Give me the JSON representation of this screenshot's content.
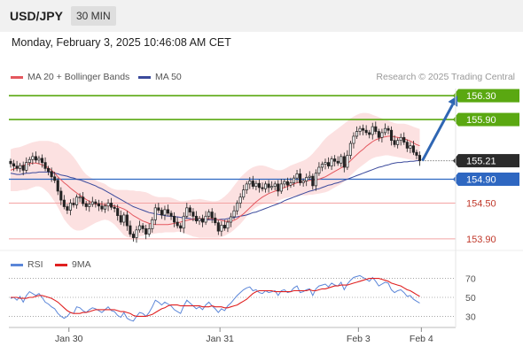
{
  "header": {
    "symbol": "USD/JPY",
    "timeframe": "30 MIN"
  },
  "datetime": "Monday, February 3, 2025 10:46:08 AM CET",
  "colors": {
    "green_level": "#5aa811",
    "blue_level": "#2e67c1",
    "red_level": "#f3a3a3",
    "price_tag": "#2b2b2b",
    "arrow": "#2f66b3",
    "ma20": "#e4575e",
    "ma50": "#3b4a9c",
    "bollinger_fill": "#fbdcdc",
    "rsi": "#5b86d8",
    "rsi_ma": "#e02020"
  },
  "chart_data": [
    {
      "type": "candlestick",
      "legend": {
        "ma20": "MA 20 + Bollinger Bands",
        "ma50": "MA 50",
        "credit": "Research © 2025 Trading Central"
      },
      "ylim": [
        153.78,
        156.42
      ],
      "x_ticks": [
        {
          "index": 5,
          "label": "Jan 30"
        },
        {
          "index": 53,
          "label": "Jan 31"
        },
        {
          "index": 97,
          "label": "Feb 3"
        },
        {
          "index": 117,
          "label": "Feb 4"
        }
      ],
      "levels": [
        {
          "value": 156.3,
          "label": "156.30",
          "kind": "resistance"
        },
        {
          "value": 155.9,
          "label": "155.90",
          "kind": "resistance"
        },
        {
          "value": 154.9,
          "label": "154.90",
          "kind": "pivot"
        },
        {
          "value": 154.5,
          "label": "154.50",
          "kind": "support"
        },
        {
          "value": 153.9,
          "label": "153.90",
          "kind": "support"
        }
      ],
      "last_price": {
        "value": 155.21,
        "label": "155.21"
      },
      "arrow": {
        "from_price": 155.21,
        "to_price": 156.3
      },
      "close": [
        155.16,
        155.12,
        155.08,
        155.13,
        155.05,
        155.18,
        155.23,
        155.28,
        155.22,
        155.25,
        155.18,
        155.08,
        155.03,
        154.94,
        154.88,
        154.7,
        154.55,
        154.44,
        154.38,
        154.5,
        154.47,
        154.6,
        154.6,
        154.49,
        154.44,
        154.48,
        154.52,
        154.49,
        154.45,
        154.4,
        154.45,
        154.5,
        154.43,
        154.41,
        154.29,
        154.18,
        154.3,
        154.12,
        153.98,
        153.92,
        154.05,
        154.12,
        154.07,
        153.98,
        154.07,
        154.22,
        154.42,
        154.38,
        154.3,
        154.39,
        154.33,
        154.28,
        154.18,
        154.12,
        154.08,
        154.28,
        154.42,
        154.35,
        154.28,
        154.2,
        154.24,
        154.18,
        154.28,
        154.35,
        154.25,
        154.17,
        154.03,
        154.13,
        154.08,
        154.18,
        154.27,
        154.37,
        154.5,
        154.6,
        154.72,
        154.82,
        154.87,
        154.78,
        154.83,
        154.76,
        154.74,
        154.82,
        154.76,
        154.78,
        154.82,
        154.7,
        154.82,
        154.86,
        154.8,
        154.84,
        154.92,
        154.99,
        154.84,
        154.87,
        154.93,
        154.95,
        154.79,
        155.0,
        155.1,
        155.15,
        155.18,
        155.12,
        155.24,
        155.2,
        155.17,
        155.28,
        155.1,
        155.3,
        155.5,
        155.62,
        155.7,
        155.75,
        155.72,
        155.68,
        155.65,
        155.78,
        155.7,
        155.6,
        155.68,
        155.75,
        155.72,
        155.55,
        155.48,
        155.55,
        155.6,
        155.52,
        155.42,
        155.46,
        155.35,
        155.3,
        155.21
      ],
      "ma20": [
        155.05,
        155.07,
        155.09,
        155.11,
        155.13,
        155.15,
        155.16,
        155.17,
        155.17,
        155.16,
        155.14,
        155.12,
        155.09,
        155.05,
        155.0,
        154.94,
        154.89,
        154.84,
        154.8,
        154.75,
        154.71,
        154.67,
        154.63,
        154.6,
        154.56,
        154.53,
        154.5,
        154.48,
        154.48,
        154.48,
        154.47,
        154.46,
        154.46,
        154.45,
        154.44,
        154.42,
        154.4,
        154.37,
        154.33,
        154.29,
        154.26,
        154.23,
        154.2,
        154.18,
        154.16,
        154.15,
        154.14,
        154.14,
        154.14,
        154.14,
        154.14,
        154.15,
        154.16,
        154.17,
        154.18,
        154.2,
        154.21,
        154.22,
        154.23,
        154.24,
        154.24,
        154.24,
        154.24,
        154.24,
        154.24,
        154.23,
        154.22,
        154.21,
        154.2,
        154.19,
        154.2,
        154.21,
        154.24,
        154.28,
        154.32,
        154.37,
        154.42,
        154.47,
        154.52,
        154.56,
        154.6,
        154.63,
        154.66,
        154.68,
        154.7,
        154.72,
        154.74,
        154.76,
        154.78,
        154.8,
        154.82,
        154.84,
        154.85,
        154.86,
        154.87,
        154.88,
        154.88,
        154.89,
        154.9,
        154.92,
        154.94,
        154.97,
        155.0,
        155.03,
        155.06,
        155.09,
        155.12,
        155.16,
        155.21,
        155.26,
        155.31,
        155.36,
        155.4,
        155.45,
        155.49,
        155.53,
        155.56,
        155.58,
        155.6,
        155.61,
        155.62,
        155.62,
        155.61,
        155.6,
        155.59,
        155.58,
        155.56,
        155.54,
        155.51,
        155.48,
        155.46
      ],
      "bb_upper": [
        155.4,
        155.42,
        155.43,
        155.44,
        155.46,
        155.48,
        155.5,
        155.52,
        155.53,
        155.54,
        155.54,
        155.54,
        155.54,
        155.53,
        155.51,
        155.5,
        155.46,
        155.42,
        155.38,
        155.33,
        155.27,
        155.2,
        155.12,
        155.04,
        154.98,
        154.94,
        154.91,
        154.88,
        154.86,
        154.84,
        154.82,
        154.78,
        154.75,
        154.73,
        154.72,
        154.72,
        154.72,
        154.72,
        154.71,
        154.71,
        154.7,
        154.7,
        154.69,
        154.68,
        154.66,
        154.63,
        154.61,
        154.6,
        154.6,
        154.6,
        154.6,
        154.59,
        154.57,
        154.55,
        154.53,
        154.53,
        154.54,
        154.55,
        154.56,
        154.56,
        154.57,
        154.56,
        154.55,
        154.54,
        154.53,
        154.53,
        154.54,
        154.57,
        154.61,
        154.66,
        154.72,
        154.79,
        154.86,
        154.93,
        154.98,
        155.03,
        155.07,
        155.1,
        155.12,
        155.13,
        155.13,
        155.12,
        155.1,
        155.08,
        155.06,
        155.05,
        155.05,
        155.07,
        155.1,
        155.13,
        155.15,
        155.17,
        155.19,
        155.21,
        155.24,
        155.28,
        155.33,
        155.39,
        155.45,
        155.52,
        155.58,
        155.63,
        155.67,
        155.71,
        155.75,
        155.79,
        155.83,
        155.87,
        155.92,
        155.95,
        155.98,
        156.0,
        156.01,
        156.01,
        156.0,
        155.98,
        155.96,
        155.94,
        155.92,
        155.9,
        155.88,
        155.86,
        155.84,
        155.83,
        155.83,
        155.83,
        155.82,
        155.8,
        155.78,
        155.76,
        155.74
      ],
      "bb_lower": [
        154.7,
        154.7,
        154.7,
        154.71,
        154.72,
        154.72,
        154.74,
        154.76,
        154.78,
        154.78,
        154.76,
        154.72,
        154.67,
        154.6,
        154.52,
        154.43,
        154.33,
        154.23,
        154.16,
        154.1,
        154.06,
        154.04,
        154.04,
        154.05,
        154.08,
        154.11,
        154.14,
        154.17,
        154.19,
        154.21,
        154.22,
        154.21,
        154.18,
        154.14,
        154.08,
        154.02,
        153.96,
        153.93,
        153.92,
        153.92,
        153.93,
        153.94,
        153.95,
        153.97,
        153.98,
        153.98,
        153.99,
        154.0,
        154.0,
        154.01,
        154.01,
        154.01,
        154.01,
        154.02,
        154.02,
        154.0,
        153.98,
        153.96,
        153.94,
        153.93,
        153.92,
        153.92,
        153.92,
        153.92,
        153.92,
        153.92,
        153.92,
        153.93,
        153.95,
        153.98,
        154.01,
        154.05,
        154.1,
        154.15,
        154.21,
        154.28,
        154.34,
        154.39,
        154.43,
        154.46,
        154.48,
        154.49,
        154.5,
        154.51,
        154.52,
        154.54,
        154.56,
        154.58,
        154.59,
        154.6,
        154.61,
        154.62,
        154.63,
        154.63,
        154.63,
        154.64,
        154.64,
        154.65,
        154.66,
        154.67,
        154.68,
        154.7,
        154.73,
        154.76,
        154.79,
        154.82,
        154.86,
        154.91,
        154.96,
        155.01,
        155.06,
        155.1,
        155.14,
        155.18,
        155.22,
        155.25,
        155.27,
        155.28,
        155.29,
        155.3,
        155.3,
        155.29,
        155.28,
        155.27,
        155.26,
        155.25,
        155.24,
        155.23,
        155.22,
        155.21,
        155.2
      ],
      "ma50": [
        155.0,
        154.99,
        154.98,
        154.98,
        154.99,
        155.0,
        155.0,
        155.01,
        155.01,
        155.02,
        155.02,
        155.02,
        155.02,
        155.01,
        155.0,
        154.99,
        154.97,
        154.96,
        154.95,
        154.93,
        154.92,
        154.9,
        154.89,
        154.87,
        154.85,
        154.83,
        154.81,
        154.79,
        154.76,
        154.74,
        154.71,
        154.68,
        154.65,
        154.62,
        154.59,
        154.56,
        154.53,
        154.5,
        154.47,
        154.44,
        154.42,
        154.4,
        154.38,
        154.36,
        154.34,
        154.33,
        154.32,
        154.31,
        154.3,
        154.29,
        154.28,
        154.28,
        154.27,
        154.27,
        154.26,
        154.25,
        154.25,
        154.24,
        154.23,
        154.23,
        154.22,
        154.22,
        154.22,
        154.22,
        154.22,
        154.22,
        154.22,
        154.23,
        154.23,
        154.24,
        154.25,
        154.26,
        154.27,
        154.28,
        154.29,
        154.3,
        154.32,
        154.34,
        154.35,
        154.37,
        154.39,
        154.41,
        154.43,
        154.45,
        154.47,
        154.49,
        154.51,
        154.54,
        154.56,
        154.58,
        154.6,
        154.62,
        154.64,
        154.66,
        154.68,
        154.7,
        154.71,
        154.73,
        154.74,
        154.76,
        154.78,
        154.8,
        154.81,
        154.83,
        154.84,
        154.86,
        154.88,
        154.9,
        154.92,
        154.94,
        154.96,
        154.98,
        155.0,
        155.02,
        155.04,
        155.06,
        155.08,
        155.1,
        155.11,
        155.13,
        155.14,
        155.16,
        155.17,
        155.18,
        155.18,
        155.19,
        155.19,
        155.2,
        155.2,
        155.21,
        155.21
      ]
    },
    {
      "type": "line",
      "legend": {
        "rsi": "RSI",
        "rsi_ma": "9MA"
      },
      "ylim": [
        22,
        78
      ],
      "y_ticks": [
        70,
        50,
        30
      ],
      "rsi": [
        49,
        50,
        47,
        51,
        45,
        52,
        56,
        54,
        52,
        54,
        50,
        45,
        43,
        40,
        38,
        33,
        30,
        28,
        30,
        34,
        33,
        40,
        39,
        36,
        34,
        37,
        39,
        38,
        36,
        34,
        37,
        40,
        36,
        35,
        31,
        29,
        34,
        28,
        26,
        25,
        30,
        34,
        33,
        30,
        34,
        40,
        47,
        45,
        42,
        45,
        43,
        41,
        37,
        35,
        33,
        41,
        47,
        44,
        41,
        38,
        40,
        37,
        42,
        45,
        41,
        38,
        34,
        38,
        36,
        41,
        44,
        48,
        52,
        55,
        58,
        60,
        61,
        57,
        58,
        55,
        54,
        57,
        55,
        56,
        57,
        52,
        57,
        58,
        55,
        56,
        60,
        62,
        55,
        56,
        58,
        59,
        52,
        59,
        62,
        63,
        64,
        61,
        65,
        63,
        62,
        66,
        58,
        64,
        68,
        71,
        72,
        73,
        71,
        69,
        67,
        71,
        67,
        62,
        64,
        66,
        65,
        58,
        55,
        57,
        58,
        55,
        51,
        52,
        48,
        46,
        44
      ],
      "rsi_ma": [
        50,
        50,
        50,
        49,
        49,
        49,
        50,
        50,
        51,
        52,
        52,
        51,
        50,
        49,
        47,
        45,
        42,
        39,
        36,
        34,
        33,
        33,
        33,
        34,
        34,
        35,
        36,
        37,
        37,
        37,
        37,
        37,
        37,
        37,
        36,
        35,
        35,
        34,
        33,
        31,
        30,
        30,
        30,
        30,
        31,
        32,
        34,
        36,
        38,
        39,
        41,
        42,
        42,
        42,
        41,
        41,
        41,
        41,
        41,
        41,
        41,
        40,
        40,
        40,
        41,
        40,
        40,
        40,
        39,
        39,
        40,
        41,
        42,
        44,
        46,
        48,
        51,
        54,
        56,
        57,
        57,
        57,
        57,
        57,
        56,
        56,
        56,
        56,
        56,
        56,
        57,
        57,
        57,
        57,
        57,
        58,
        57,
        57,
        58,
        59,
        59,
        60,
        61,
        62,
        62,
        63,
        63,
        63,
        64,
        65,
        66,
        67,
        68,
        69,
        70,
        70,
        70,
        70,
        69,
        68,
        67,
        65,
        64,
        63,
        62,
        60,
        58,
        57,
        55,
        53,
        51
      ]
    }
  ]
}
